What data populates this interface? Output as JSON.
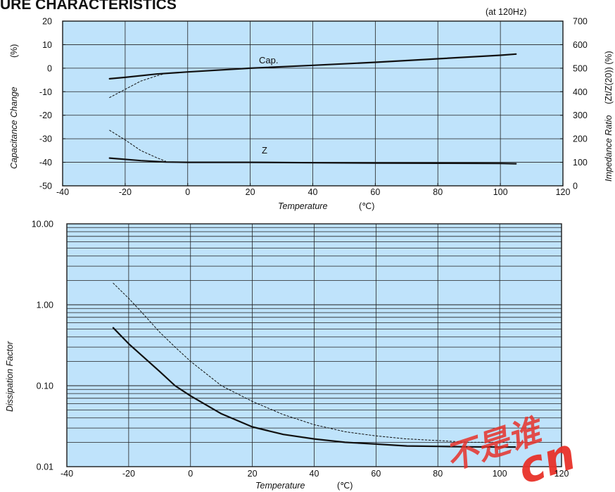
{
  "page": {
    "title": "URE CHARACTERISTICS"
  },
  "colors": {
    "plot_bg": "#bfe3fb",
    "grid": "#222222",
    "curve": "#111111",
    "watermark": "#e8322a"
  },
  "watermark_text": "cn",
  "chart_data": [
    {
      "type": "line",
      "note": "(at 120Hz)",
      "xlabel": "Temperature",
      "xunit": "(℃)",
      "ylabel": "Capacitance Change",
      "yunit": "(%)",
      "y2label": "Impedance Ratio",
      "y2unit": "(Zt/Z(20))  (%)",
      "xlim": [
        -40,
        120
      ],
      "ylim": [
        -50,
        20
      ],
      "y2lim": [
        0,
        700
      ],
      "xticks": [
        "-40",
        "-20",
        "0",
        "20",
        "40",
        "60",
        "80",
        "100",
        "120"
      ],
      "yticks": [
        "20",
        "10",
        "0",
        "-10",
        "-20",
        "-30",
        "-40",
        "-50"
      ],
      "y2ticks": [
        "700",
        "600",
        "500",
        "400",
        "300",
        "200",
        "100",
        "0"
      ],
      "grid": true,
      "series": [
        {
          "name": "Cap.",
          "axis": "left",
          "style": "solid",
          "x": [
            -25,
            -20,
            -10,
            0,
            20,
            40,
            60,
            80,
            100,
            105
          ],
          "y": [
            -4.5,
            -3.9,
            -2.5,
            -1.6,
            0,
            1.2,
            2.5,
            4,
            5.5,
            6
          ]
        },
        {
          "axis": "left",
          "style": "dashed",
          "x": [
            -25,
            -20,
            -15,
            -10,
            -7
          ],
          "y": [
            -12.5,
            -9,
            -5.5,
            -3.3,
            -2.2
          ]
        },
        {
          "name": "Z",
          "axis": "right",
          "style": "solid",
          "x": [
            -25,
            -15,
            -7,
            0,
            20,
            40,
            60,
            80,
            100,
            105
          ],
          "y": [
            118,
            107,
            101,
            100,
            100,
            98,
            97,
            96,
            95,
            94
          ]
        },
        {
          "axis": "right",
          "style": "dashed",
          "x": [
            -25,
            -20,
            -15,
            -10,
            -7
          ],
          "y": [
            236,
            195,
            150,
            120,
            104
          ]
        }
      ]
    },
    {
      "type": "line",
      "xlabel": "Temperature",
      "xunit": "(℃)",
      "ylabel": "Dissipation Factor",
      "xlim": [
        -40,
        120
      ],
      "ylim": [
        0.01,
        10
      ],
      "yscale": "log",
      "xticks": [
        "-40",
        "-20",
        "0",
        "20",
        "40",
        "60",
        "80",
        "100",
        "120"
      ],
      "yticks": [
        "10.00",
        "1.00",
        "0.10",
        "0.01"
      ],
      "grid": true,
      "series": [
        {
          "style": "solid",
          "x": [
            -25,
            -20,
            -10,
            -5,
            0,
            10,
            20,
            30,
            40,
            50,
            60,
            70,
            80,
            90,
            100,
            105
          ],
          "y": [
            0.52,
            0.33,
            0.15,
            0.1,
            0.075,
            0.045,
            0.031,
            0.025,
            0.022,
            0.02,
            0.019,
            0.018,
            0.0178,
            0.0176,
            0.0175,
            0.0175
          ]
        },
        {
          "style": "dashed",
          "x": [
            -25,
            -20,
            -15,
            -10,
            -5,
            0,
            10,
            20,
            30,
            40,
            50,
            60,
            70,
            80,
            90,
            100,
            105
          ],
          "y": [
            1.85,
            1.2,
            0.75,
            0.46,
            0.3,
            0.2,
            0.1,
            0.064,
            0.044,
            0.033,
            0.027,
            0.024,
            0.022,
            0.021,
            0.02,
            0.02,
            0.02
          ]
        }
      ]
    }
  ]
}
